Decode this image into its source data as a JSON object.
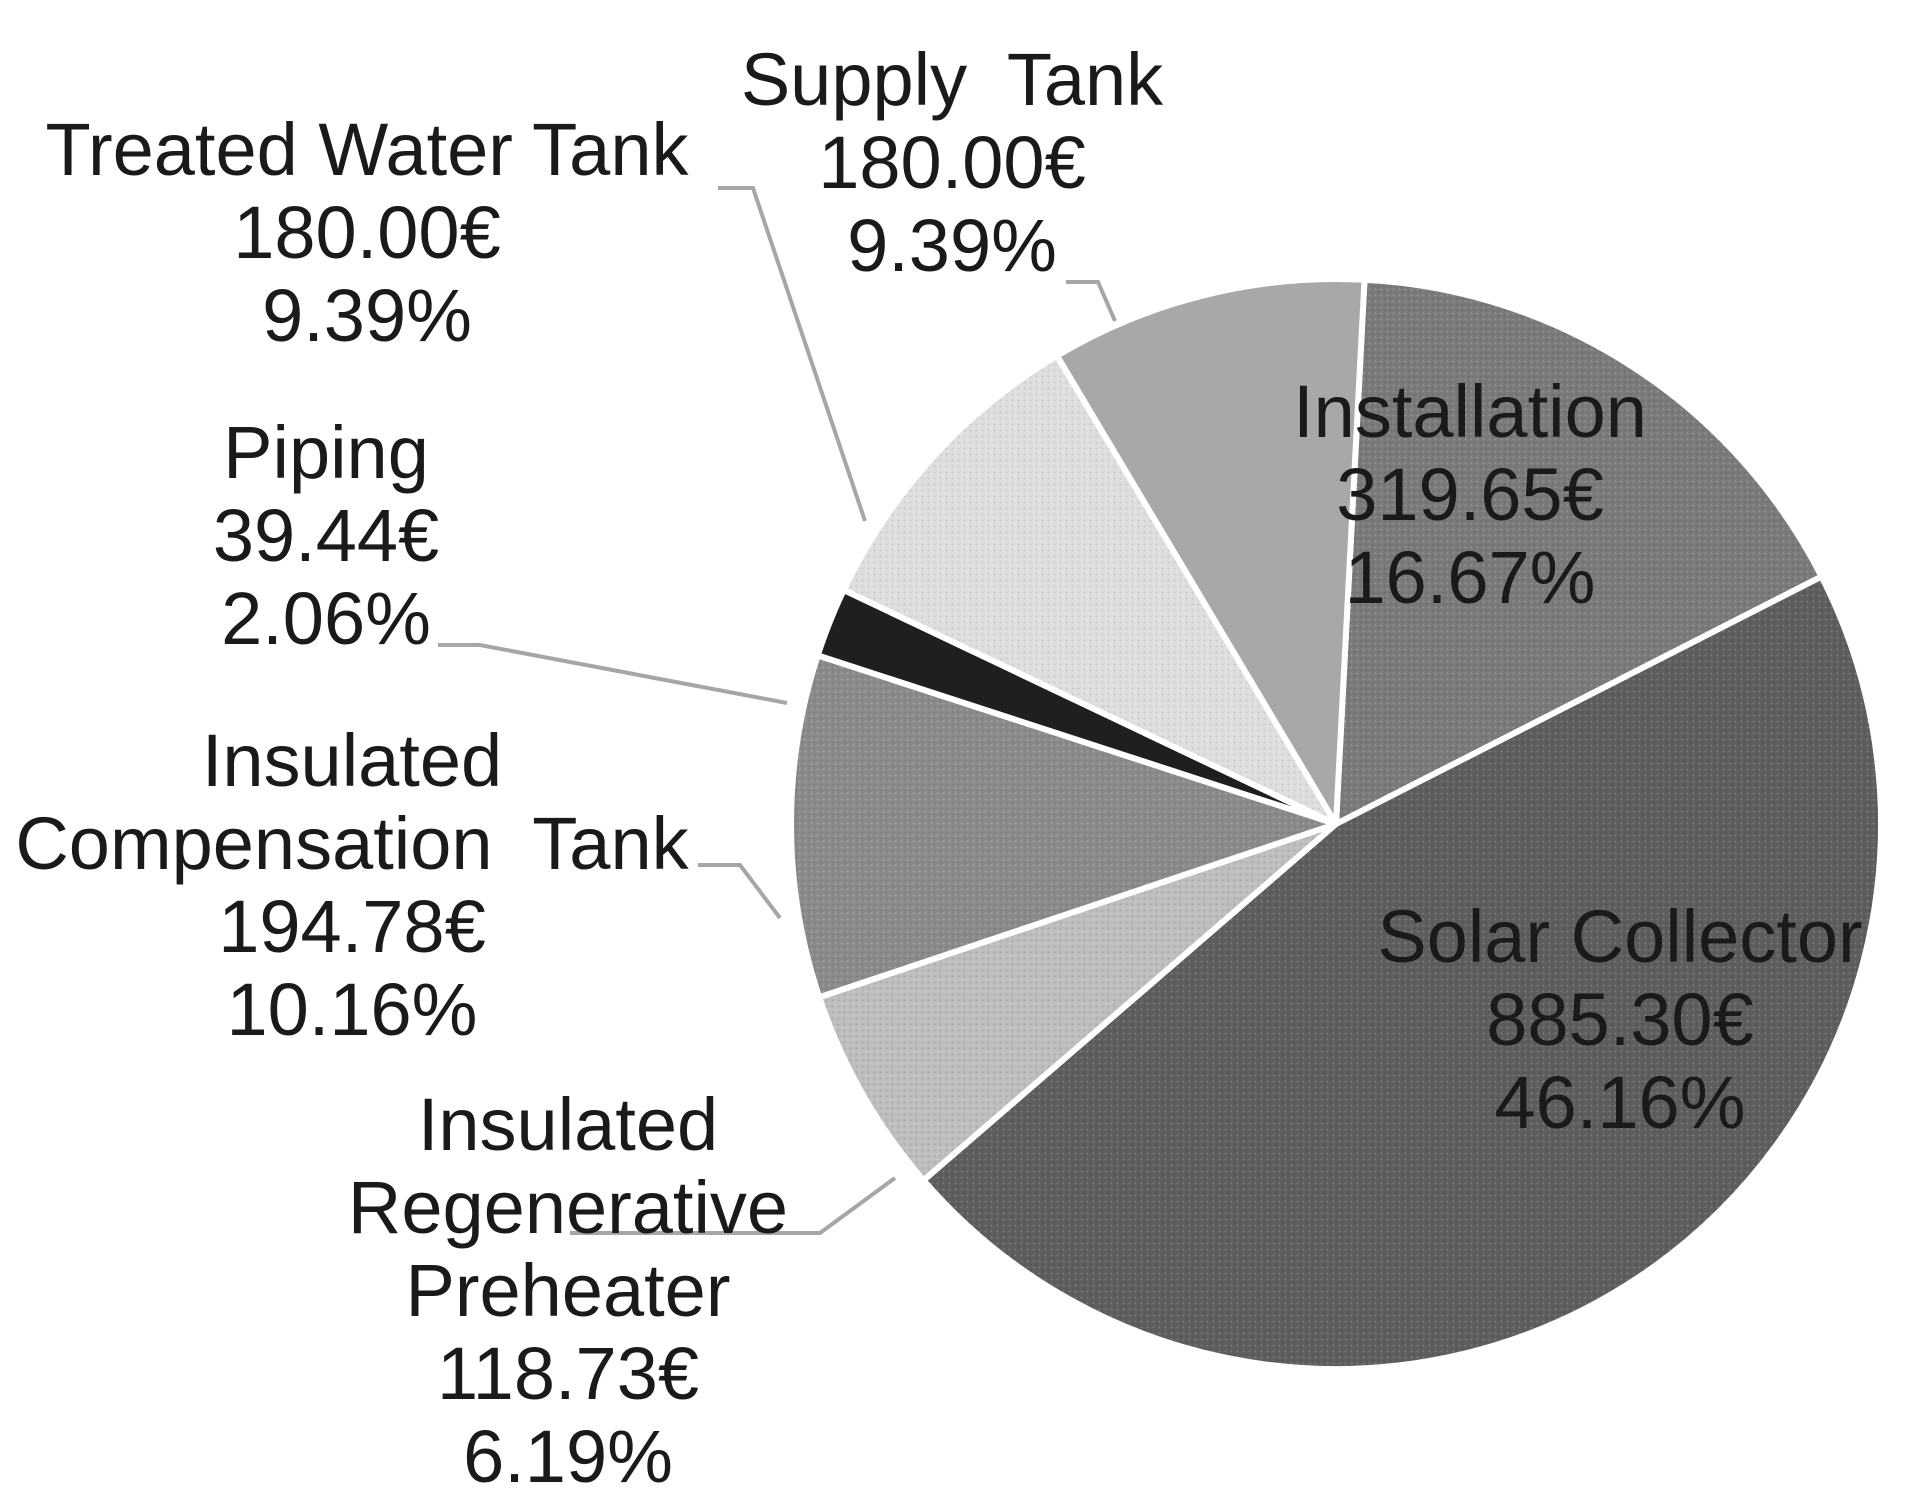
{
  "chart_data": {
    "type": "pie",
    "slices": [
      {
        "label": [
          "Installation"
        ],
        "value": 319.65,
        "value_text": "319.65€",
        "percent": 16.67,
        "percent_text": "16.67%",
        "color": "#7a7a7a",
        "texture": "dots"
      },
      {
        "label": [
          "Solar Collector"
        ],
        "value": 885.3,
        "value_text": "885.30€",
        "percent": 46.16,
        "percent_text": "46.16%",
        "color": "#5e5e5e",
        "texture": "dots"
      },
      {
        "label": [
          "Insulated",
          "Regenerative",
          "Preheater"
        ],
        "value": 118.73,
        "value_text": "118.73€",
        "percent": 6.19,
        "percent_text": "6.19%",
        "color": "#bdbdbd",
        "texture": "dots"
      },
      {
        "label": [
          "Insulated",
          "Compensation  Tank"
        ],
        "value": 194.78,
        "value_text": "194.78€",
        "percent": 10.16,
        "percent_text": "10.16%",
        "color": "#8a8a8a",
        "texture": "dots"
      },
      {
        "label": [
          "Piping"
        ],
        "value": 39.44,
        "value_text": "39.44€",
        "percent": 2.06,
        "percent_text": "2.06%",
        "color": "#1f1f1f",
        "texture": "none"
      },
      {
        "label": [
          "Treated Water Tank"
        ],
        "value": 180.0,
        "value_text": "180.00€",
        "percent": 9.39,
        "percent_text": "9.39%",
        "color": "#dedede",
        "texture": "dots"
      },
      {
        "label": [
          "Supply  Tank"
        ],
        "value": 180.0,
        "value_text": "180.00€",
        "percent": 9.39,
        "percent_text": "9.39%",
        "color": "#a8a8a8",
        "texture": "none"
      }
    ],
    "start_angle_deg": 3,
    "direction": "clockwise",
    "title": "",
    "legend": "none"
  }
}
